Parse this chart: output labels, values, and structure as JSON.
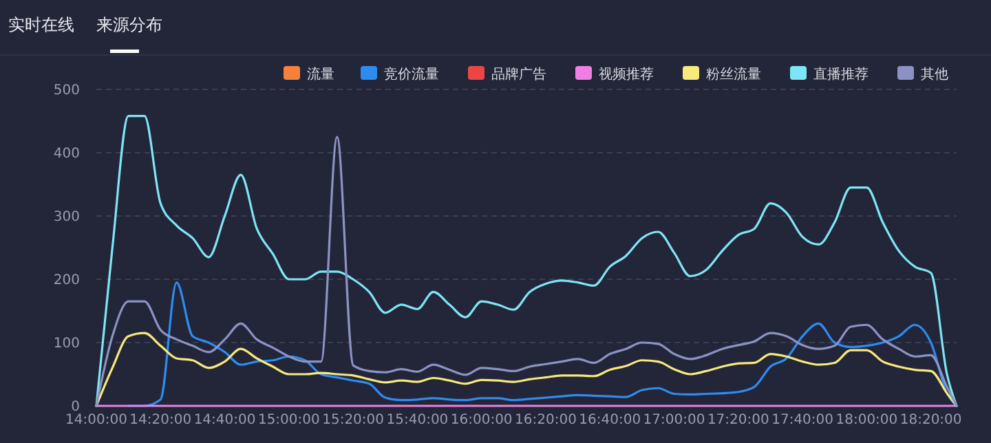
{
  "chart_data": {
    "type": "line",
    "annotations": [
      "实时在线",
      "来源分布"
    ],
    "x": [
      14,
      14.0833,
      14.1667,
      14.25,
      14.3333,
      14.4167,
      14.5,
      14.5833,
      14.6667,
      14.75,
      14.8333,
      14.9167,
      15,
      15.0833,
      15.1667,
      15.25,
      15.3333,
      15.4167,
      15.5,
      15.5833,
      15.6667,
      15.75,
      15.8333,
      15.9167,
      16,
      16.0833,
      16.1667,
      16.25,
      16.3333,
      16.4167,
      16.5,
      16.5833,
      16.6667,
      16.75,
      16.8333,
      16.9167,
      17,
      17.0833,
      17.1667,
      17.25,
      17.3333,
      17.4167,
      17.5,
      17.5833,
      17.6667,
      17.75,
      17.8333,
      17.9167,
      18,
      18.0833,
      18.1667,
      18.25,
      18.3333,
      18.4167,
      18.4667
    ],
    "xlim": [
      14,
      18.4667
    ],
    "xticks": [
      {
        "value": 14,
        "label": "14:00:00"
      },
      {
        "value": 14.3333,
        "label": "14:20:00"
      },
      {
        "value": 14.6667,
        "label": "14:40:00"
      },
      {
        "value": 15,
        "label": "15:00:00"
      },
      {
        "value": 15.3333,
        "label": "15:20:00"
      },
      {
        "value": 15.6667,
        "label": "15:40:00"
      },
      {
        "value": 16,
        "label": "16:00:00"
      },
      {
        "value": 16.3333,
        "label": "16:20:00"
      },
      {
        "value": 16.6667,
        "label": "16:40:00"
      },
      {
        "value": 17,
        "label": "17:00:00"
      },
      {
        "value": 17.3333,
        "label": "17:20:00"
      },
      {
        "value": 17.6667,
        "label": "17:40:00"
      },
      {
        "value": 18,
        "label": "18:00:00"
      },
      {
        "value": 18.3333,
        "label": "18:20:00"
      }
    ],
    "ylim": [
      0,
      500
    ],
    "yticks": [
      0,
      100,
      200,
      300,
      400,
      500
    ],
    "grid": "y",
    "legend": "top right",
    "marker": "none",
    "series": [
      {
        "name": "流量",
        "color": "#f5813a",
        "values": [
          null,
          null,
          null,
          null,
          null,
          null,
          null,
          null,
          null,
          null,
          null,
          null,
          null,
          null,
          null,
          null,
          null,
          null,
          null,
          null,
          null,
          null,
          null,
          null,
          null,
          null,
          null,
          null,
          null,
          null,
          null,
          null,
          null,
          null,
          null,
          null,
          null,
          null,
          null,
          null,
          null,
          null,
          null,
          null,
          null,
          null,
          null,
          null,
          null,
          null,
          null,
          null,
          null,
          null,
          null
        ]
      },
      {
        "name": "竞价流量",
        "color": "#2d8cf0",
        "values": [
          null,
          null,
          0,
          0,
          10,
          195,
          110,
          100,
          85,
          65,
          70,
          72,
          78,
          72,
          50,
          45,
          40,
          35,
          13,
          9,
          10,
          12,
          10,
          9,
          12,
          12,
          9,
          11,
          13,
          15,
          17,
          16,
          15,
          14,
          25,
          28,
          19,
          18,
          19,
          20,
          22,
          30,
          62,
          75,
          110,
          130,
          100,
          93,
          95,
          100,
          110,
          128,
          100,
          20,
          0
        ]
      },
      {
        "name": "品牌广告",
        "color": "#ed4545",
        "values": [
          null,
          null,
          null,
          null,
          null,
          null,
          null,
          null,
          null,
          null,
          null,
          null,
          null,
          null,
          null,
          null,
          null,
          null,
          null,
          null,
          null,
          null,
          null,
          null,
          null,
          null,
          null,
          null,
          null,
          null,
          null,
          null,
          null,
          null,
          null,
          null,
          null,
          null,
          null,
          null,
          null,
          null,
          null,
          null,
          null,
          null,
          null,
          null,
          null,
          null,
          null,
          null,
          null,
          null,
          null
        ]
      },
      {
        "name": "视频推荐",
        "color": "#f07ee6",
        "values": [
          0,
          0,
          0,
          0,
          0,
          0,
          0,
          0,
          0,
          0,
          0,
          0,
          0,
          0,
          0,
          0,
          0,
          0,
          0,
          0,
          0,
          0,
          0,
          0,
          0,
          0,
          0,
          0,
          0,
          0,
          0,
          0,
          0,
          0,
          0,
          0,
          0,
          0,
          0,
          0,
          0,
          0,
          0,
          0,
          0,
          0,
          0,
          0,
          0,
          0,
          0,
          0,
          0,
          0,
          0
        ]
      },
      {
        "name": "粉丝流量",
        "color": "#f7e97a",
        "values": [
          0,
          60,
          110,
          115,
          95,
          75,
          72,
          60,
          70,
          90,
          75,
          62,
          50,
          50,
          52,
          50,
          48,
          42,
          37,
          40,
          38,
          44,
          40,
          35,
          41,
          40,
          38,
          42,
          45,
          48,
          48,
          47,
          57,
          63,
          72,
          70,
          58,
          50,
          55,
          62,
          67,
          68,
          82,
          78,
          70,
          65,
          68,
          88,
          88,
          70,
          62,
          57,
          55,
          20,
          0
        ]
      },
      {
        "name": "直播推荐",
        "color": "#7de6f5",
        "values": [
          0,
          250,
          458,
          458,
          320,
          285,
          265,
          235,
          300,
          365,
          280,
          240,
          200,
          200,
          212,
          212,
          200,
          180,
          147,
          160,
          153,
          180,
          160,
          140,
          165,
          160,
          152,
          180,
          193,
          198,
          195,
          190,
          220,
          237,
          265,
          275,
          242,
          205,
          215,
          245,
          270,
          280,
          320,
          305,
          267,
          255,
          290,
          345,
          345,
          290,
          245,
          220,
          210,
          50,
          0
        ]
      },
      {
        "name": "其他",
        "color": "#8c93c4",
        "values": [
          0,
          110,
          165,
          165,
          120,
          105,
          95,
          85,
          105,
          130,
          105,
          92,
          78,
          70,
          70,
          425,
          64,
          55,
          53,
          58,
          54,
          65,
          57,
          49,
          60,
          58,
          55,
          62,
          66,
          70,
          74,
          68,
          82,
          90,
          100,
          98,
          82,
          74,
          80,
          90,
          96,
          102,
          115,
          110,
          96,
          90,
          95,
          125,
          128,
          105,
          90,
          78,
          80,
          30,
          0
        ]
      }
    ]
  }
}
